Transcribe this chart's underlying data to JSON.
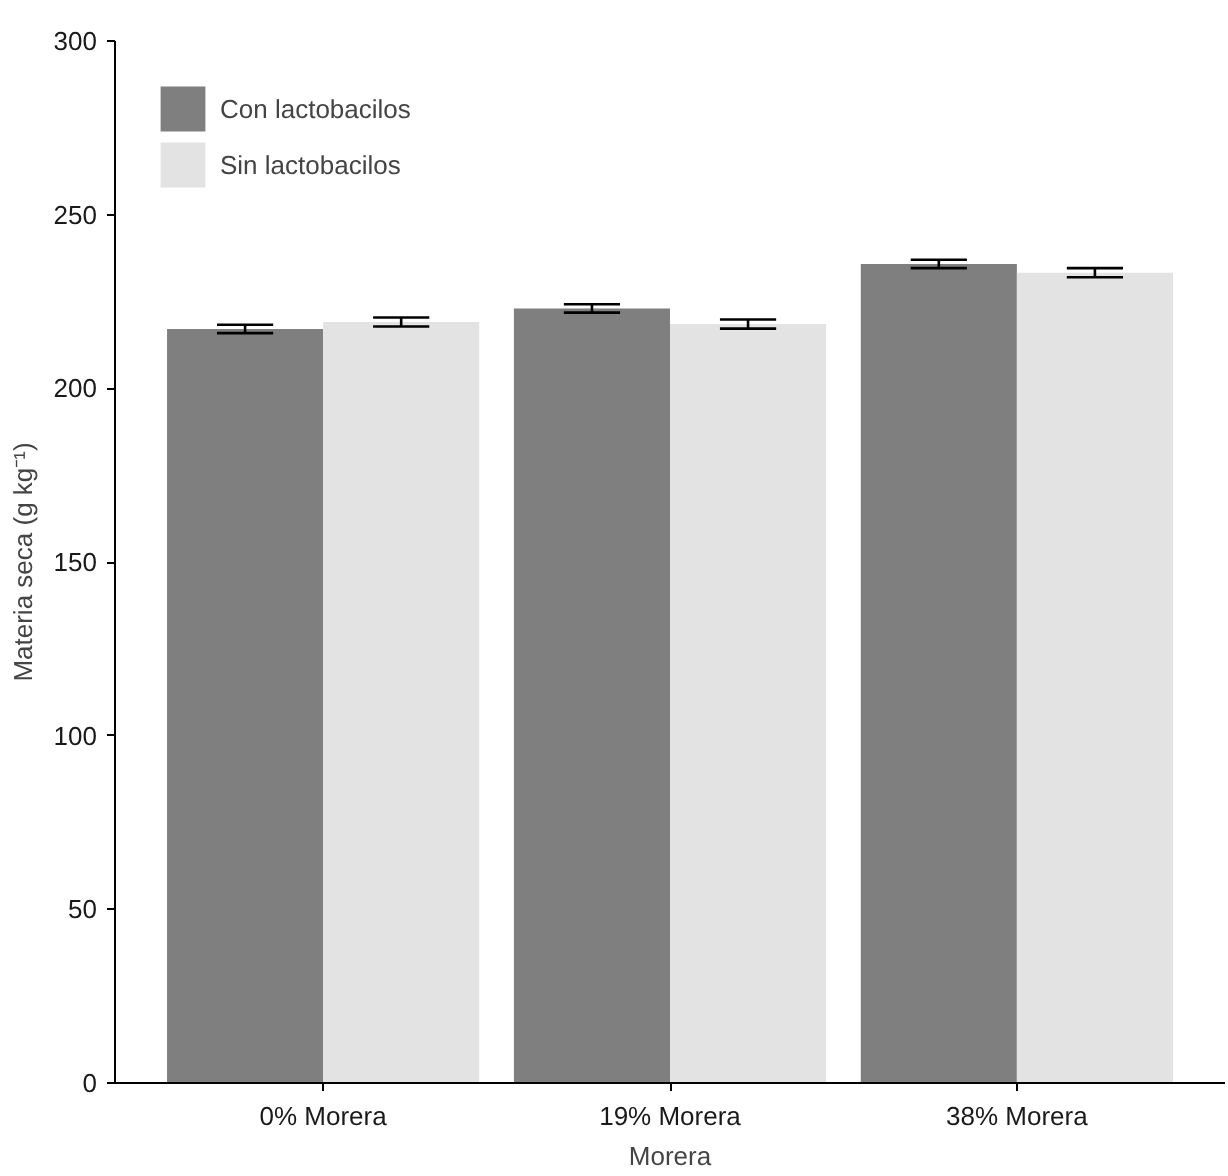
{
  "chart_data": {
    "type": "bar",
    "xlabel": "Morera",
    "ylabel": "Materia seca (g kg⁻¹)",
    "categories": [
      "0% Morera",
      "19% Morera",
      "38% Morera"
    ],
    "series": [
      {
        "name": "Con lactobacilos",
        "color": "#7f7f7f",
        "values": [
          217.1,
          223.0,
          235.8
        ],
        "errors": [
          1.2,
          1.2,
          1.2
        ]
      },
      {
        "name": "Sin lactobacilos",
        "color": "#e3e3e3",
        "values": [
          219.1,
          218.5,
          233.3
        ],
        "errors": [
          1.3,
          1.3,
          1.3
        ]
      }
    ],
    "ylim": [
      0,
      300
    ],
    "yticks": [
      0,
      50,
      100,
      150,
      200,
      250,
      300
    ],
    "grid": false,
    "legend": "top left"
  }
}
